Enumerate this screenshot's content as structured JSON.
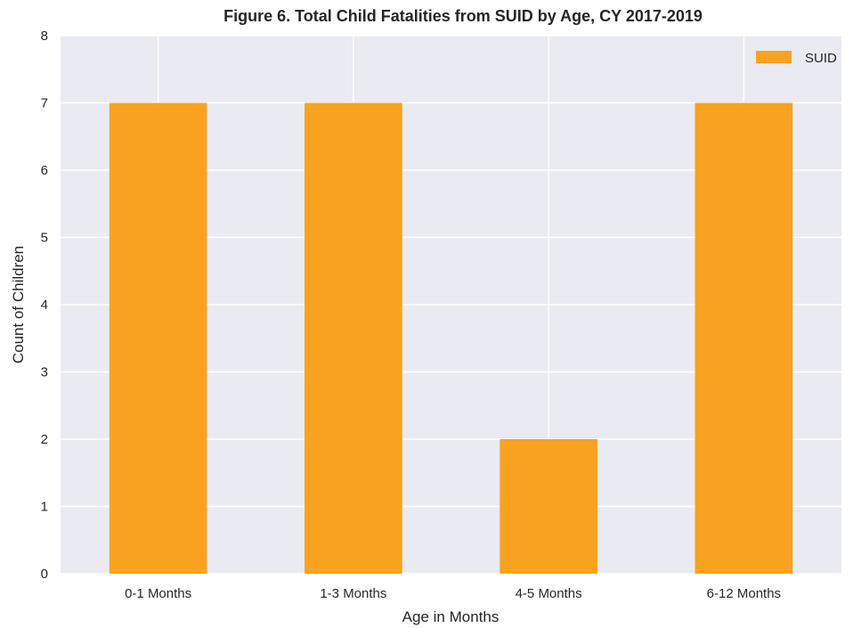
{
  "chart_data": {
    "type": "bar",
    "title": "Figure 6.  Total Child Fatalities from SUID by Age,  CY 2017-2019",
    "xlabel": "Age in Months",
    "ylabel": "Count of Children",
    "categories": [
      "0-1 Months",
      "1-3 Months",
      "4-5 Months",
      "6-12 Months"
    ],
    "series": [
      {
        "name": "SUID",
        "values": [
          7,
          7,
          2,
          7
        ],
        "color": "#F8A21F"
      }
    ],
    "ylim": [
      0,
      8
    ],
    "yticks": [
      0,
      1,
      2,
      3,
      4,
      5,
      6,
      7,
      8
    ],
    "grid": true,
    "legend_position": "top-right",
    "background_color": "#EAEAF2"
  }
}
